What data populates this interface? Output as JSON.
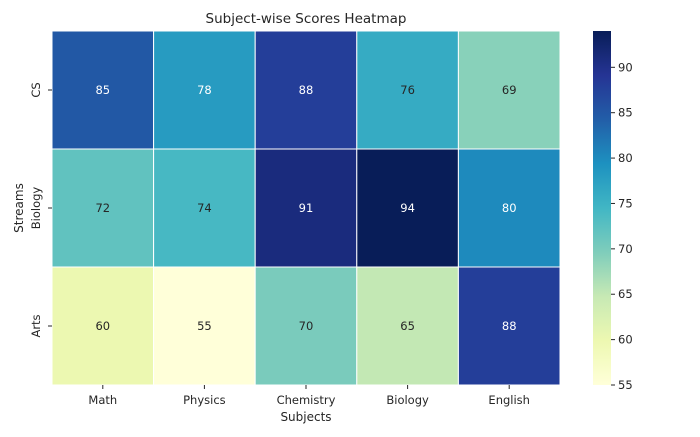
{
  "chart_data": {
    "type": "heatmap",
    "title": "Subject-wise Scores Heatmap",
    "xlabel": "Subjects",
    "ylabel": "Streams",
    "x_categories": [
      "Math",
      "Physics",
      "Chemistry",
      "Biology",
      "English"
    ],
    "y_categories": [
      "CS",
      "Biology",
      "Arts"
    ],
    "values": [
      [
        85,
        78,
        88,
        76,
        69
      ],
      [
        72,
        74,
        91,
        94,
        80
      ],
      [
        60,
        55,
        70,
        65,
        88
      ]
    ],
    "colormap": "YlGnBu",
    "color_range": [
      55,
      94
    ],
    "colorbar_ticks": [
      55,
      60,
      65,
      70,
      75,
      80,
      85,
      90
    ],
    "annotated": true,
    "grid": false
  }
}
